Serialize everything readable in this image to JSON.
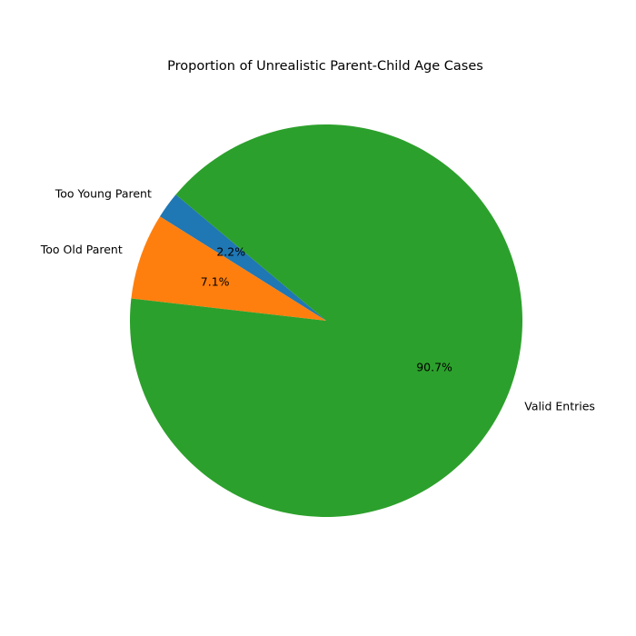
{
  "chart_data": {
    "type": "pie",
    "title": "Proportion of Unrealistic Parent-Child Age Cases",
    "start_angle_deg": 140,
    "direction": "counterclockwise",
    "slices": [
      {
        "label": "Too Young Parent",
        "value": 2.2,
        "pct_label": "2.2%",
        "color": "#1f77b4"
      },
      {
        "label": "Too Old Parent",
        "value": 7.1,
        "pct_label": "7.1%",
        "color": "#ff7f0e"
      },
      {
        "label": "Valid Entries",
        "value": 90.7,
        "pct_label": "90.7%",
        "color": "#2ca02c"
      }
    ]
  }
}
